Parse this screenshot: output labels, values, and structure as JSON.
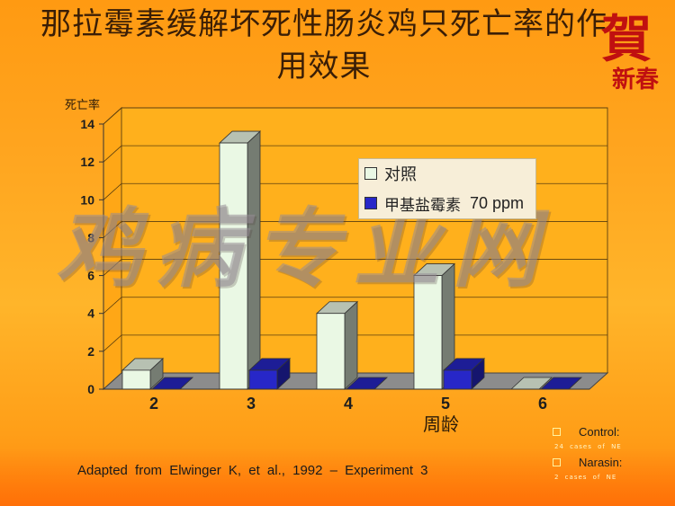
{
  "slide": {
    "title": "那拉霉素缓解坏死性肠炎鸡只死亡率的作用效果",
    "seal_text": "賀",
    "seal_sub": "新春",
    "watermark": "鸡病专业网",
    "source": "Adapted from Elwinger K, et al., 1992 – Experiment 3"
  },
  "chart_data": {
    "type": "bar",
    "title": "那拉霉素缓解坏死性肠炎鸡只死亡率的作用效果",
    "xlabel": "周龄",
    "ylabel": "死亡率",
    "categories": [
      "2",
      "3",
      "4",
      "5",
      "6"
    ],
    "ylim": [
      0,
      14
    ],
    "yticks": [
      0,
      2,
      4,
      6,
      8,
      10,
      12,
      14
    ],
    "grid": true,
    "legend_position": "upper-right",
    "series": [
      {
        "name": "对照",
        "values": [
          1,
          13,
          4,
          6,
          0
        ],
        "color": "#eaf8e4"
      },
      {
        "name": "甲基盐霉素 70 ppm",
        "values": [
          0,
          1,
          0,
          1,
          0
        ],
        "color": "#2727c8"
      }
    ]
  },
  "legend": {
    "items": [
      {
        "label": "对照",
        "color": "#eaf8e4"
      },
      {
        "label": "甲基盐霉素",
        "suffix": "70 ppm",
        "color": "#2727c8"
      }
    ]
  },
  "notes": {
    "control_label": "Control:",
    "control_sub": "24 cases of NE",
    "narasin_label": "Narasin:",
    "narasin_sub": "2 cases of NE"
  }
}
